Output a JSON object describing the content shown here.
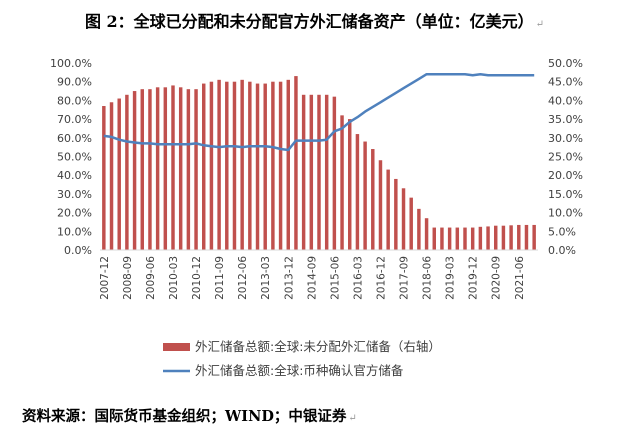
{
  "figure": {
    "title": "图 2：全球已分配和未分配官方外汇储备资产（单位：亿美元）",
    "source": "资料来源：国际货币基金组织；WIND；中银证券"
  },
  "chart_data": {
    "type": "bar",
    "categories": [
      "2007-12",
      "2008-03",
      "2008-06",
      "2008-09",
      "2008-12",
      "2009-03",
      "2009-06",
      "2009-09",
      "2009-12",
      "2010-03",
      "2010-06",
      "2010-09",
      "2010-12",
      "2011-03",
      "2011-06",
      "2011-09",
      "2011-12",
      "2012-03",
      "2012-06",
      "2012-09",
      "2012-12",
      "2013-03",
      "2013-06",
      "2013-09",
      "2013-12",
      "2014-03",
      "2014-06",
      "2014-09",
      "2014-12",
      "2015-03",
      "2015-06",
      "2015-09",
      "2015-12",
      "2016-03",
      "2016-06",
      "2016-09",
      "2016-12",
      "2017-03",
      "2017-06",
      "2017-09",
      "2017-12",
      "2018-03",
      "2018-06",
      "2018-09",
      "2018-12",
      "2019-03",
      "2019-06",
      "2019-09",
      "2019-12",
      "2020-03",
      "2020-06",
      "2020-09",
      "2020-12",
      "2021-03",
      "2021-06",
      "2021-09",
      "2021-12"
    ],
    "x_tick_labels": [
      "2007-12",
      "2008-09",
      "2009-06",
      "2010-03",
      "2010-12",
      "2011-09",
      "2012-06",
      "2013-03",
      "2013-12",
      "2014-09",
      "2015-06",
      "2016-03",
      "2016-12",
      "2017-09",
      "2018-06",
      "2019-03",
      "2019-12",
      "2020-09",
      "2021-06"
    ],
    "series": [
      {
        "name": "外汇储备总额:全球:未分配外汇储备（右轴）",
        "type": "bar",
        "axis": "right",
        "color": "#C0504D",
        "values": [
          38.5,
          39.5,
          40.5,
          41.5,
          42.5,
          43,
          43,
          43.5,
          43.5,
          44,
          43.5,
          43,
          43,
          44.5,
          45,
          45.5,
          45,
          45,
          45.5,
          45,
          44.5,
          44.5,
          45,
          45,
          45.5,
          46.5,
          41.5,
          41.5,
          41.5,
          41.5,
          41,
          36,
          35,
          31,
          29,
          27,
          24,
          21.5,
          19,
          16.5,
          14,
          11,
          8.5,
          6,
          6,
          6,
          6,
          6,
          6,
          6.2,
          6.3,
          6.5,
          6.5,
          6.6,
          6.7,
          6.7,
          6.7
        ]
      },
      {
        "name": "外汇储备总额:全球:币种确认官方储备",
        "type": "line",
        "axis": "left",
        "color": "#4F81BD",
        "values": [
          61,
          60.5,
          59,
          58,
          57.5,
          57,
          57,
          56.5,
          56.5,
          56.5,
          56.5,
          56.5,
          57,
          56,
          55.5,
          55,
          55.5,
          55.5,
          55,
          55.5,
          55.5,
          55.5,
          55,
          54,
          53.5,
          58.5,
          58.5,
          58.5,
          58.5,
          59,
          63.5,
          65,
          68.5,
          71,
          74,
          76.5,
          79,
          81.5,
          84,
          86.5,
          89,
          91.5,
          94,
          94,
          94,
          94,
          94,
          94,
          93.5,
          94,
          93.5,
          93.5,
          93.5,
          93.5,
          93.5,
          93.5,
          93.5
        ]
      }
    ],
    "left_axis": {
      "ylim": [
        0,
        100
      ],
      "ticks": [
        "0.0%",
        "10.0%",
        "20.0%",
        "30.0%",
        "40.0%",
        "50.0%",
        "60.0%",
        "70.0%",
        "80.0%",
        "90.0%",
        "100.0%"
      ]
    },
    "right_axis": {
      "ylim": [
        0,
        50
      ],
      "ticks": [
        "0.0%",
        "5.0%",
        "10.0%",
        "15.0%",
        "20.0%",
        "25.0%",
        "30.0%",
        "35.0%",
        "40.0%",
        "45.0%",
        "50.0%"
      ]
    },
    "legend": [
      {
        "label": "外汇储备总额:全球:未分配外汇储备（右轴）",
        "kind": "bar",
        "color": "#C0504D"
      },
      {
        "label": "外汇储备总额:全球:币种确认官方储备",
        "kind": "line",
        "color": "#4F81BD"
      }
    ],
    "legend_position": "bottom",
    "grid": false
  }
}
